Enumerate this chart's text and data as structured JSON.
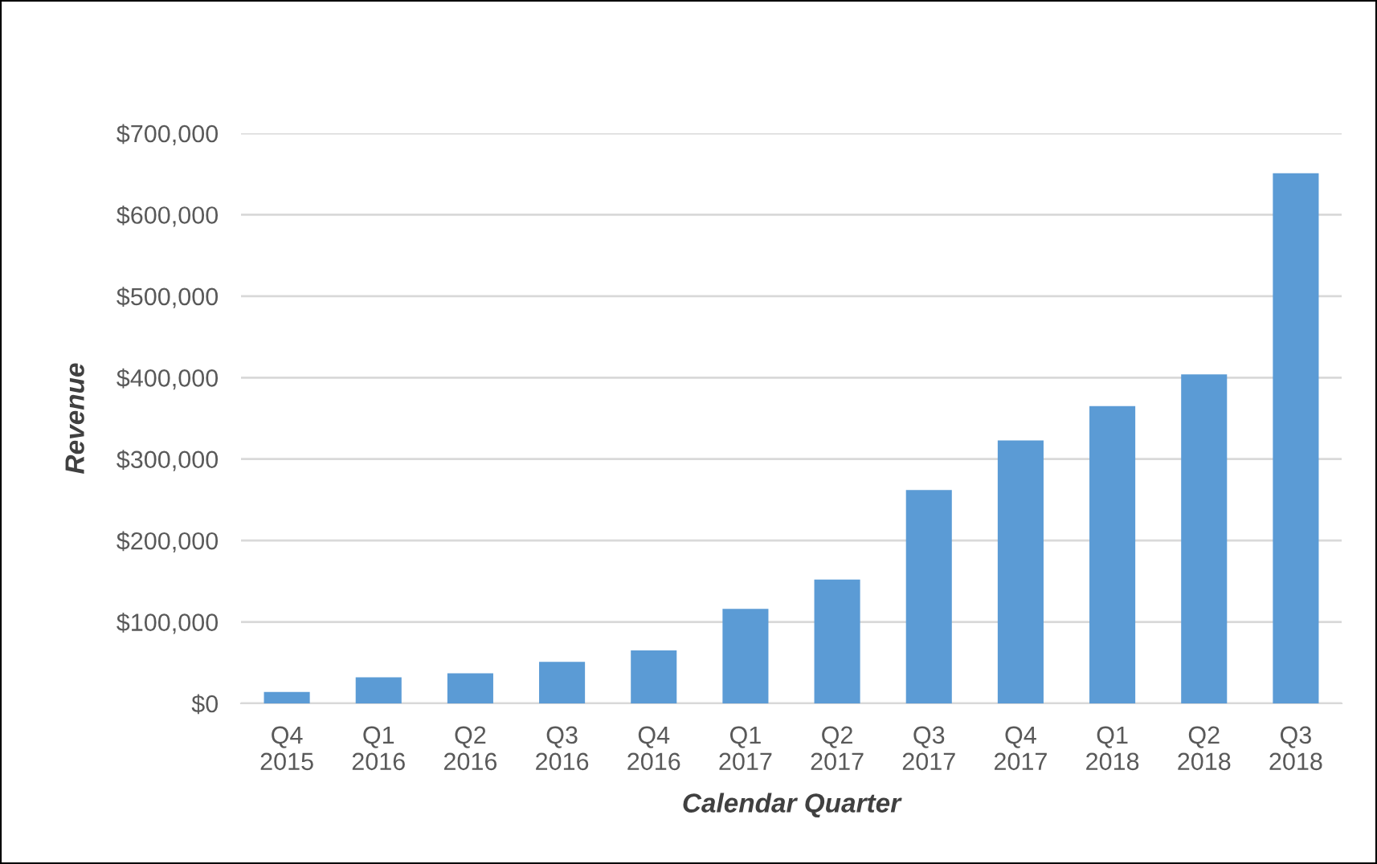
{
  "chart_data": {
    "type": "bar",
    "xlabel": "Calendar Quarter",
    "ylabel": "Revenue",
    "categories": [
      "Q4\n2015",
      "Q1\n2016",
      "Q2\n2016",
      "Q3\n2016",
      "Q4\n2016",
      "Q1\n2017",
      "Q2\n2017",
      "Q3\n2017",
      "Q4\n2017",
      "Q1\n2018",
      "Q2\n2018",
      "Q3\n2018"
    ],
    "values": [
      14000,
      32000,
      37000,
      51000,
      65000,
      116000,
      152000,
      262000,
      323000,
      365000,
      404000,
      651000
    ],
    "color": "#5b9bd5",
    "ylim": [
      0,
      700000
    ],
    "yticks": [
      {
        "value": 0,
        "label": "$0"
      },
      {
        "value": 100000,
        "label": "$100,000"
      },
      {
        "value": 200000,
        "label": "$200,000"
      },
      {
        "value": 300000,
        "label": "$300,000"
      },
      {
        "value": 400000,
        "label": "$400,000"
      },
      {
        "value": 500000,
        "label": "$500,000"
      },
      {
        "value": 600000,
        "label": "$600,000"
      },
      {
        "value": 700000,
        "label": "$700,000"
      }
    ],
    "grid": "y",
    "legend": false
  }
}
